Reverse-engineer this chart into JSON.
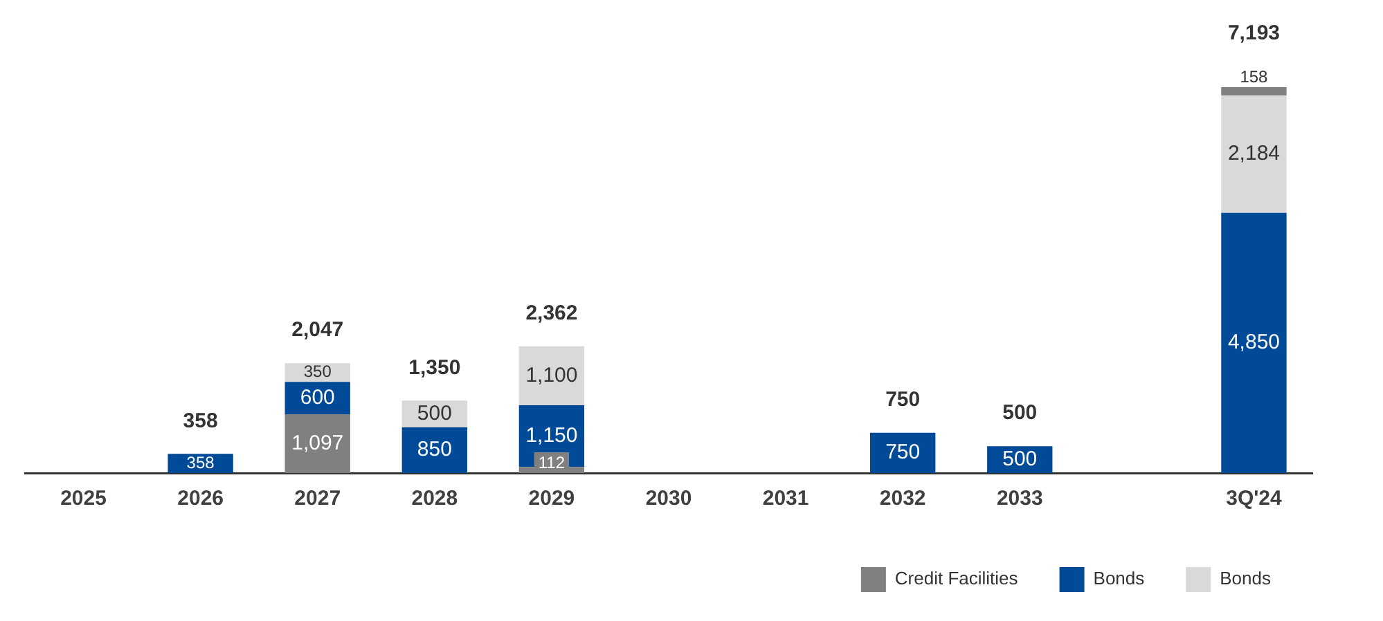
{
  "chart_data": {
    "type": "bar",
    "stacked": true,
    "categories": [
      "2025",
      "2026",
      "2027",
      "2028",
      "2029",
      "2030",
      "2031",
      "2032",
      "2033",
      null,
      "3Q'24"
    ],
    "series": [
      {
        "name": "Credit Facilities",
        "color": "#808080",
        "values": [
          null,
          null,
          1097,
          null,
          112,
          null,
          null,
          null,
          null,
          null,
          null
        ],
        "value_labels": [
          null,
          null,
          "1,097",
          null,
          "112",
          null,
          null,
          null,
          null,
          null,
          null
        ]
      },
      {
        "name": "Bonds",
        "color": "#004a98",
        "values": [
          null,
          358,
          600,
          850,
          1150,
          null,
          null,
          750,
          500,
          null,
          4850
        ],
        "value_labels": [
          null,
          "358",
          "600",
          "850",
          "1,150",
          null,
          null,
          "750",
          "500",
          null,
          "4,850"
        ]
      },
      {
        "name": "Bonds",
        "color": "#d9d9d9",
        "values": [
          null,
          null,
          350,
          500,
          1100,
          null,
          null,
          null,
          null,
          null,
          2184
        ],
        "value_labels": [
          null,
          null,
          "350",
          "500",
          "1,100",
          null,
          null,
          null,
          null,
          null,
          "2,184"
        ]
      },
      {
        "color": "#808080",
        "values": [
          null,
          null,
          null,
          null,
          null,
          null,
          null,
          null,
          null,
          null,
          158
        ],
        "value_labels": [
          null,
          null,
          null,
          null,
          null,
          null,
          null,
          null,
          null,
          null,
          "158"
        ]
      }
    ],
    "totals": [
      null,
      "358",
      "2,047",
      "1,350",
      "2,362",
      null,
      null,
      "750",
      "500",
      null,
      "7,193"
    ],
    "legend": "bottom right",
    "grid": false,
    "tick_labels": "x"
  }
}
